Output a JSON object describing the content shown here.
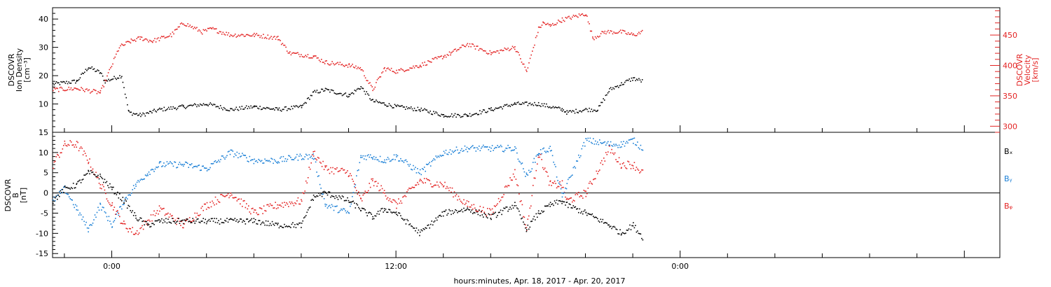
{
  "xaxis": {
    "title": "hours:minutes, Apr. 18, 2017 - Apr. 20, 2017",
    "range_hours": [
      -2.5,
      37.5
    ],
    "tick_labels": [
      {
        "hour": 0,
        "label": "0:00"
      },
      {
        "hour": 12,
        "label": "12:00"
      },
      {
        "hour": 24,
        "label": "0:00"
      }
    ],
    "minor_tick_hours": [
      -2,
      0,
      2,
      4,
      6,
      8,
      10,
      12,
      14,
      16,
      18,
      20,
      22,
      24,
      26,
      28,
      30,
      32,
      34,
      36
    ],
    "data_end_hour": 22.5
  },
  "panels": {
    "top": {
      "left_axis_label": [
        "DSCOVR",
        "Ion Density",
        "[cm⁻³]"
      ],
      "right_axis_label": [
        "DSCOVR",
        "Velocity",
        "[km/s]"
      ],
      "left_ticks": [
        "10",
        "20",
        "30",
        "40"
      ],
      "right_ticks": [
        "300",
        "350",
        "400",
        "450"
      ]
    },
    "bottom": {
      "left_axis_label": [
        "DSCOVR",
        "B",
        "[nT]"
      ],
      "left_ticks": [
        "-15",
        "-10",
        "-5",
        "0",
        "5",
        "10",
        "15"
      ],
      "legend": [
        {
          "label": "Bₓ",
          "color": "#000000"
        },
        {
          "label": "Bᵧ",
          "color": "#1a7fd6"
        },
        {
          "label": "Bᵩ",
          "color": "#e32222"
        }
      ]
    }
  },
  "colors": {
    "density": "#000000",
    "velocity": "#e32222",
    "bx": "#000000",
    "by": "#1a7fd6",
    "bz": "#e32222"
  },
  "chart_data": [
    {
      "type": "scatter",
      "panel": "top",
      "x_unit": "hours from 2017-04-18 00:00",
      "xlim": [
        -2.5,
        37.5
      ],
      "series": [
        {
          "axis": "left",
          "ylim": [
            0,
            44
          ],
          "x": [
            -2.5,
            -1.5,
            -1.0,
            -0.5,
            -0.3,
            0.4,
            0.7,
            1.2,
            2,
            3,
            4,
            5,
            6,
            7,
            8,
            8.5,
            9,
            10,
            10.5,
            11,
            11.5,
            12,
            13,
            14,
            15,
            16,
            17,
            17.5,
            18,
            19,
            19.2,
            20,
            20.5,
            21,
            21.5,
            22,
            22.4
          ],
          "y": [
            17,
            18,
            23,
            21,
            18,
            20,
            7,
            6,
            8,
            9,
            10,
            8,
            9,
            8,
            9,
            14,
            15,
            13,
            16,
            11,
            10,
            9,
            8,
            6,
            6,
            8,
            10,
            10,
            10,
            8,
            7,
            8,
            8,
            15,
            17,
            19,
            18
          ]
        },
        {
          "axis": "right",
          "ylim": [
            290,
            495
          ],
          "x": [
            -2.5,
            -1.5,
            -0.5,
            0.3,
            0.8,
            1.2,
            1.7,
            2.5,
            3,
            3.8,
            4.2,
            5,
            6,
            7,
            7.5,
            8.5,
            9,
            10,
            10.5,
            11,
            11.5,
            12,
            13,
            14,
            14.3,
            15,
            16,
            17,
            17.5,
            18,
            18.2,
            18.5,
            19,
            20,
            20.3,
            20.8,
            21.5,
            22,
            22.4
          ],
          "y": [
            360,
            362,
            355,
            430,
            440,
            445,
            440,
            450,
            470,
            455,
            460,
            450,
            450,
            445,
            420,
            415,
            405,
            400,
            395,
            360,
            395,
            390,
            400,
            415,
            420,
            435,
            420,
            430,
            390,
            460,
            470,
            465,
            475,
            485,
            445,
            455,
            455,
            450,
            455
          ]
        }
      ]
    },
    {
      "type": "scatter",
      "panel": "bottom",
      "x_unit": "hours from 2017-04-18 00:00",
      "xlim": [
        -2.5,
        37.5
      ],
      "ylim": [
        -16,
        15
      ],
      "series": [
        {
          "x": [
            -2.5,
            -2,
            -1.5,
            -1,
            -0.5,
            0,
            0.5,
            1,
            1.5,
            2,
            3,
            4,
            5,
            6,
            7,
            8,
            8.5,
            9,
            10,
            10.5,
            11,
            11.5,
            12,
            13,
            14,
            15,
            16,
            17,
            17.5,
            18,
            18.5,
            19,
            19.2,
            20,
            21,
            21.5,
            22,
            22.4
          ],
          "y": [
            -2,
            1,
            2,
            5,
            4,
            1,
            -2,
            -6,
            -8,
            -7,
            -7,
            -7,
            -7,
            -7,
            -8,
            -8,
            -1,
            0,
            -2,
            -4,
            -6,
            -4,
            -5,
            -10,
            -5,
            -4,
            -6,
            -3,
            -9,
            -5,
            -3,
            -2,
            -3,
            -5,
            -8,
            -10,
            -8,
            -11
          ]
        },
        {
          "x": [
            -2.5,
            -2,
            -1.5,
            -1,
            -0.5,
            0,
            0.5,
            1,
            1.5,
            2,
            3,
            4,
            5,
            6,
            7,
            8,
            8.5,
            9,
            10,
            10.5,
            11,
            11.5,
            12,
            13,
            14,
            15,
            16,
            17,
            17.5,
            18,
            18.5,
            19,
            19.2,
            20,
            21,
            21.5,
            22,
            22.4
          ],
          "y": [
            -2,
            1,
            -4,
            -9,
            -3,
            -8,
            -2,
            2,
            5,
            7,
            7,
            6,
            10,
            8,
            8,
            9,
            9,
            -3,
            -5,
            9,
            9,
            8,
            9,
            5,
            10,
            11,
            11,
            11,
            4,
            10,
            11,
            -1,
            2,
            13,
            12,
            12,
            13,
            11
          ]
        },
        {
          "x": [
            -2.5,
            -2,
            -1.5,
            -1,
            -0.5,
            0,
            0.5,
            1,
            1.5,
            2,
            3,
            4,
            5,
            6,
            7,
            8,
            8.5,
            9,
            10,
            10.5,
            11,
            11.5,
            12,
            13,
            14,
            15,
            16,
            17,
            17.5,
            18,
            18.5,
            19,
            19.2,
            20,
            21,
            21.5,
            22,
            22.4
          ],
          "y": [
            7,
            12,
            12,
            8,
            2,
            -3,
            -8,
            -10,
            -7,
            -4,
            -8,
            -3,
            0,
            -5,
            -3,
            -2,
            10,
            6,
            5,
            -2,
            3,
            0,
            -3,
            3,
            2,
            -3,
            -5,
            5,
            -9,
            10,
            2,
            2,
            -2,
            0,
            11,
            7,
            7,
            5
          ]
        }
      ]
    }
  ]
}
